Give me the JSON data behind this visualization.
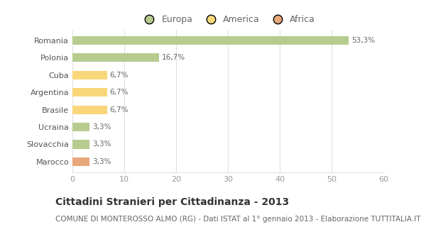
{
  "categories": [
    "Romania",
    "Polonia",
    "Cuba",
    "Argentina",
    "Brasile",
    "Ucraina",
    "Slovacchia",
    "Marocco"
  ],
  "values": [
    53.3,
    16.7,
    6.7,
    6.7,
    6.7,
    3.3,
    3.3,
    3.3
  ],
  "labels": [
    "53,3%",
    "16,7%",
    "6,7%",
    "6,7%",
    "6,7%",
    "3,3%",
    "3,3%",
    "3,3%"
  ],
  "bar_colors": [
    "#b5cc8e",
    "#b5cc8e",
    "#f9d67a",
    "#f9d67a",
    "#f9d67a",
    "#b5cc8e",
    "#b5cc8e",
    "#e8a87c"
  ],
  "legend_labels": [
    "Europa",
    "America",
    "Africa"
  ],
  "legend_colors": [
    "#b5cc8e",
    "#f9d67a",
    "#e8a87c"
  ],
  "title": "Cittadini Stranieri per Cittadinanza - 2013",
  "subtitle": "COMUNE DI MONTEROSSO ALMO (RG) - Dati ISTAT al 1° gennaio 2013 - Elaborazione TUTTITALIA.IT",
  "xlim": [
    0,
    60
  ],
  "xticks": [
    0,
    10,
    20,
    30,
    40,
    50,
    60
  ],
  "bg_color": "#ffffff",
  "grid_color": "#e0e0e0",
  "bar_height": 0.5,
  "title_fontsize": 10,
  "subtitle_fontsize": 7.5,
  "label_fontsize": 7.5,
  "tick_fontsize": 8,
  "legend_fontsize": 9
}
